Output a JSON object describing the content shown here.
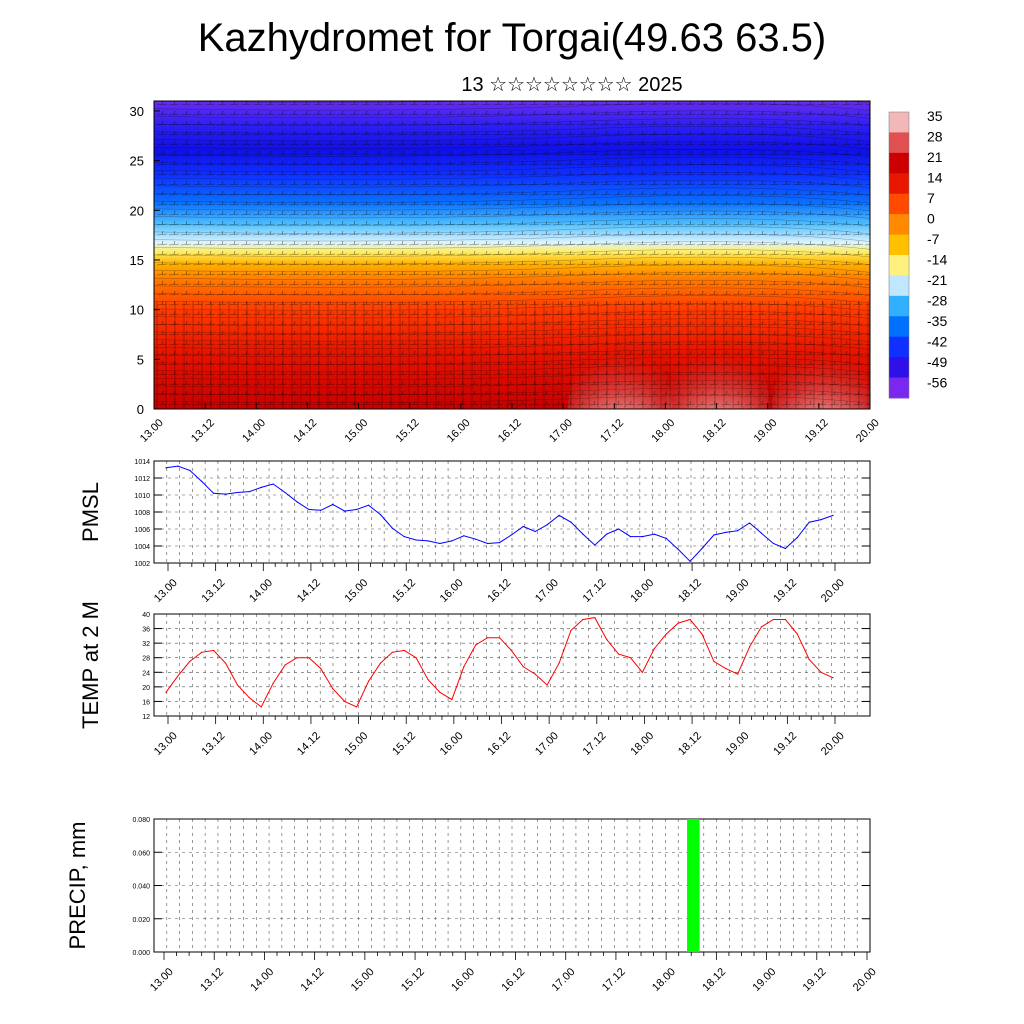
{
  "header": {
    "title": "Kazhydromet for Torgai(49.63 63.5)",
    "subtitle": "13 ☆☆☆☆☆☆☆☆ 2025"
  },
  "colors": {
    "pmsl_line": "#0000ff",
    "temp_line": "#ff0000",
    "precip_bar": "#00ff00"
  },
  "time_labels": [
    "13.00",
    "13.12",
    "14.00",
    "14.12",
    "15.00",
    "15.12",
    "16.00",
    "16.12",
    "17.00",
    "17.12",
    "18.00",
    "18.12",
    "19.00",
    "19.12",
    "20.00"
  ],
  "chart_data": [
    {
      "type": "heatmap",
      "name": "cross-section",
      "x_labels": [
        "13.00",
        "13.12",
        "14.00",
        "14.12",
        "15.00",
        "15.12",
        "16.00",
        "16.12",
        "17.00",
        "17.12",
        "18.00",
        "18.12",
        "19.00",
        "19.12",
        "20.00"
      ],
      "y_ticks": [
        "0",
        "5",
        "10",
        "15",
        "20",
        "25",
        "30"
      ],
      "ylim": [
        0,
        31
      ],
      "colorbar_labels": [
        "35",
        "28",
        "21",
        "14",
        "7",
        "0",
        "-7",
        "-14",
        "-21",
        "-28",
        "-35",
        "-42",
        "-49",
        "-56"
      ],
      "colorbar_colors": [
        "#f2b8b8",
        "#e05050",
        "#cc0000",
        "#e81800",
        "#ff4a00",
        "#ff8a00",
        "#ffc000",
        "#fff080",
        "#bfe8ff",
        "#30b0ff",
        "#0070ff",
        "#1030ff",
        "#3010e8",
        "#7a28f0"
      ]
    },
    {
      "type": "line",
      "ylabel": "PMSL",
      "ylim": [
        1002,
        1014
      ],
      "y_ticks": [
        "1002",
        "1004",
        "1006",
        "1008",
        "1010",
        "1012",
        "1014"
      ],
      "x_labels": [
        "13.00",
        "13.12",
        "14.00",
        "14.12",
        "15.00",
        "15.12",
        "16.00",
        "16.12",
        "17.00",
        "17.12",
        "18.00",
        "18.12",
        "19.00",
        "19.12",
        "20.00"
      ],
      "x": [
        0,
        3,
        6,
        9,
        12,
        15,
        18,
        21,
        24,
        27,
        30,
        33,
        36,
        39,
        42,
        45,
        48,
        51,
        54,
        57,
        60,
        63,
        66,
        69,
        72,
        75,
        78,
        81,
        84,
        87,
        90,
        93,
        96,
        99,
        102,
        105,
        108,
        111,
        114,
        117,
        120,
        123,
        126,
        129,
        132,
        135,
        138,
        141,
        144,
        147,
        150,
        153,
        156,
        159,
        162,
        165,
        168
      ],
      "y": [
        1013.2,
        1013.4,
        1012.9,
        1011.6,
        1010.2,
        1010.1,
        1010.3,
        1010.4,
        1010.9,
        1011.3,
        1010.3,
        1009.2,
        1008.3,
        1008.2,
        1008.9,
        1008.1,
        1008.3,
        1008.8,
        1007.7,
        1006.1,
        1005.1,
        1004.7,
        1004.6,
        1004.3,
        1004.6,
        1005.2,
        1004.8,
        1004.3,
        1004.4,
        1005.3,
        1006.3,
        1005.7,
        1006.5,
        1007.6,
        1006.8,
        1005.4,
        1004.1,
        1005.4,
        1006.0,
        1005.1,
        1005.1,
        1005.4,
        1004.9,
        1003.6,
        1002.2,
        1003.7,
        1005.3,
        1005.6,
        1005.8,
        1006.7,
        1005.5,
        1004.3,
        1003.7,
        1005.0,
        1006.8,
        1007.1,
        1007.6
      ]
    },
    {
      "type": "line",
      "ylabel": "TEMP at 2 M",
      "ylim": [
        12,
        40
      ],
      "y_ticks": [
        "12",
        "16",
        "20",
        "24",
        "28",
        "32",
        "36",
        "40"
      ],
      "x_labels": [
        "13.00",
        "13.12",
        "14.00",
        "14.12",
        "15.00",
        "15.12",
        "16.00",
        "16.12",
        "17.00",
        "17.12",
        "18.00",
        "18.12",
        "19.00",
        "19.12",
        "20.00"
      ],
      "x": [
        0,
        3,
        6,
        9,
        12,
        15,
        18,
        21,
        24,
        27,
        30,
        33,
        36,
        39,
        42,
        45,
        48,
        51,
        54,
        57,
        60,
        63,
        66,
        69,
        72,
        75,
        78,
        81,
        84,
        87,
        90,
        93,
        96,
        99,
        102,
        105,
        108,
        111,
        114,
        117,
        120,
        123,
        126,
        129,
        132,
        135,
        138,
        141,
        144,
        147,
        150,
        153,
        156,
        159,
        162,
        165,
        168
      ],
      "y": [
        18.5,
        23.0,
        27.0,
        29.5,
        30.0,
        26.5,
        20.5,
        17.0,
        14.5,
        21.0,
        26.0,
        28.0,
        28.0,
        25.0,
        19.5,
        16.0,
        14.5,
        21.5,
        26.5,
        29.5,
        30.0,
        28.0,
        22.0,
        18.5,
        16.5,
        25.5,
        31.5,
        33.5,
        33.5,
        30.0,
        25.5,
        23.5,
        20.5,
        26.5,
        35.5,
        38.5,
        39.0,
        33.0,
        29.0,
        28.0,
        24.0,
        30.5,
        34.5,
        37.5,
        38.5,
        34.5,
        27.0,
        25.0,
        23.5,
        31.0,
        36.5,
        38.5,
        38.5,
        34.5,
        27.5,
        24.0,
        22.5
      ]
    },
    {
      "type": "bar",
      "ylabel": "PRECIP, mm",
      "ylim": [
        0,
        0.08
      ],
      "y_ticks": [
        "0.000",
        "0.020",
        "0.040",
        "0.060",
        "0.080"
      ],
      "x_labels": [
        "13.00",
        "13.12",
        "14.00",
        "14.12",
        "15.00",
        "15.12",
        "16.00",
        "16.12",
        "17.00",
        "17.12",
        "18.00",
        "18.12",
        "19.00",
        "19.12",
        "20.00"
      ],
      "bars": [
        {
          "x_start": 125.0,
          "x_end": 128.0,
          "value": 0.08
        }
      ]
    }
  ]
}
